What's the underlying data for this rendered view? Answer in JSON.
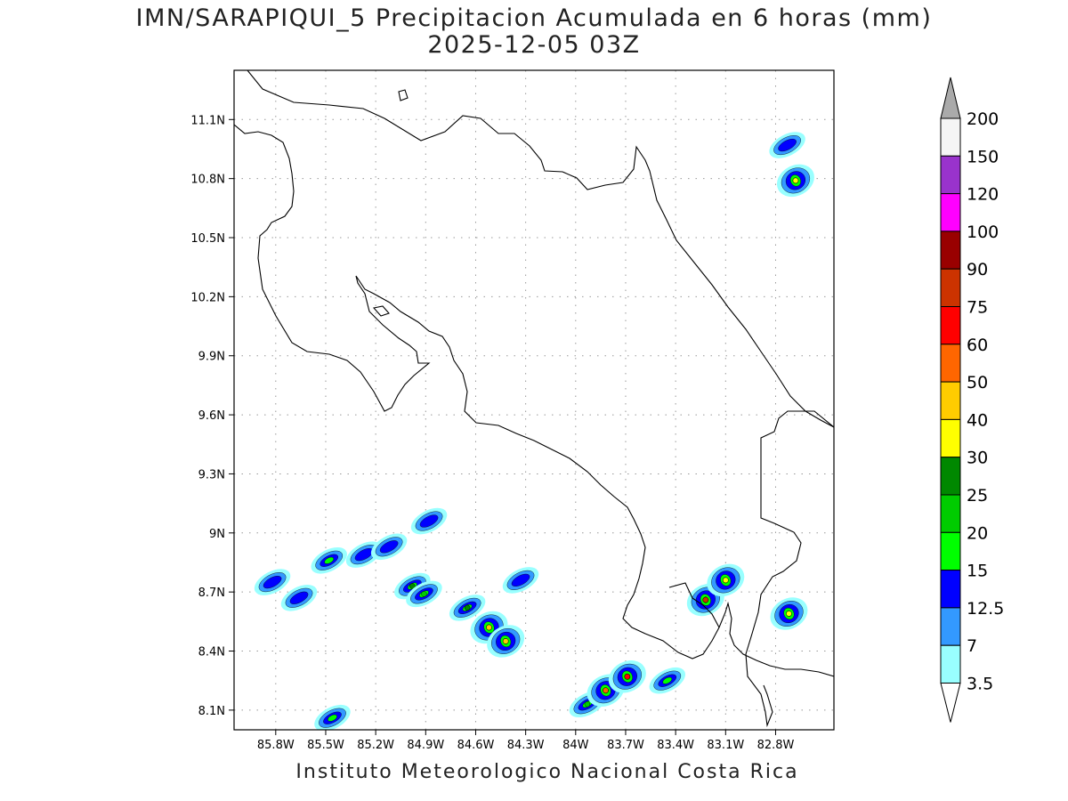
{
  "title_line1": "IMN/SARAPIQUI_5 Precipitacion Acumulada en 6 horas (mm)",
  "title_line2": "2025-12-05 03Z",
  "footer": "Instituto Meteorologico Nacional Costa Rica",
  "map": {
    "lon_range": [
      -86.05,
      -82.45
    ],
    "lat_range": [
      8.0,
      11.35
    ],
    "x_ticks": [
      {
        "lon": -85.8,
        "label": "85.8W"
      },
      {
        "lon": -85.5,
        "label": "85.5W"
      },
      {
        "lon": -85.2,
        "label": "85.2W"
      },
      {
        "lon": -84.9,
        "label": "84.9W"
      },
      {
        "lon": -84.6,
        "label": "84.6W"
      },
      {
        "lon": -84.3,
        "label": "84.3W"
      },
      {
        "lon": -84.0,
        "label": "84W"
      },
      {
        "lon": -83.7,
        "label": "83.7W"
      },
      {
        "lon": -83.4,
        "label": "83.4W"
      },
      {
        "lon": -83.1,
        "label": "83.1W"
      },
      {
        "lon": -82.8,
        "label": "82.8W"
      }
    ],
    "y_ticks": [
      {
        "lat": 11.1,
        "label": "11.1N"
      },
      {
        "lat": 10.8,
        "label": "10.8N"
      },
      {
        "lat": 10.5,
        "label": "10.5N"
      },
      {
        "lat": 10.2,
        "label": "10.2N"
      },
      {
        "lat": 9.9,
        "label": "9.9N"
      },
      {
        "lat": 9.6,
        "label": "9.6N"
      },
      {
        "lat": 9.3,
        "label": "9.3N"
      },
      {
        "lat": 9.0,
        "label": "9N"
      },
      {
        "lat": 8.7,
        "label": "8.7N"
      },
      {
        "lat": 8.4,
        "label": "8.4N"
      },
      {
        "lat": 8.1,
        "label": "8.1N"
      }
    ],
    "grid": true,
    "rain_cells": [
      {
        "lon": -85.82,
        "lat": 8.75,
        "level": 2
      },
      {
        "lon": -85.66,
        "lat": 8.67,
        "level": 2
      },
      {
        "lon": -85.48,
        "lat": 8.86,
        "level": 3
      },
      {
        "lon": -85.27,
        "lat": 8.89,
        "level": 2
      },
      {
        "lon": -85.12,
        "lat": 8.93,
        "level": 2
      },
      {
        "lon": -84.98,
        "lat": 8.73,
        "level": 5
      },
      {
        "lon": -84.91,
        "lat": 8.69,
        "level": 4
      },
      {
        "lon": -84.65,
        "lat": 8.62,
        "level": 5
      },
      {
        "lon": -84.52,
        "lat": 8.52,
        "level": 7
      },
      {
        "lon": -84.42,
        "lat": 8.45,
        "level": 7
      },
      {
        "lon": -84.33,
        "lat": 8.76,
        "level": 2
      },
      {
        "lon": -83.93,
        "lat": 8.13,
        "level": 4
      },
      {
        "lon": -83.82,
        "lat": 8.2,
        "level": 8
      },
      {
        "lon": -83.69,
        "lat": 8.27,
        "level": 9
      },
      {
        "lon": -83.45,
        "lat": 8.25,
        "level": 3
      },
      {
        "lon": -83.22,
        "lat": 8.66,
        "level": 10
      },
      {
        "lon": -83.1,
        "lat": 8.76,
        "level": 6
      },
      {
        "lon": -82.72,
        "lat": 8.59,
        "level": 6
      },
      {
        "lon": -82.68,
        "lat": 10.79,
        "level": 6
      },
      {
        "lon": -82.73,
        "lat": 10.97,
        "level": 2
      },
      {
        "lon": -85.46,
        "lat": 8.06,
        "level": 3
      },
      {
        "lon": -84.88,
        "lat": 9.06,
        "level": 2
      }
    ]
  },
  "legend": {
    "colors": [
      "#99ffff",
      "#3399ff",
      "#0000ff",
      "#00ff00",
      "#00cc00",
      "#008800",
      "#ffff00",
      "#ffcc00",
      "#ff6600",
      "#ff0000",
      "#cc3300",
      "#990000",
      "#ff00ff",
      "#9933cc",
      "#f5f5f5"
    ],
    "labels": [
      "3.5",
      "7",
      "12.5",
      "15",
      "20",
      "25",
      "30",
      "40",
      "50",
      "60",
      "75",
      "90",
      "100",
      "120",
      "150",
      "200"
    ],
    "over_color": "#aaaaaa",
    "under_color": "#ffffff"
  }
}
